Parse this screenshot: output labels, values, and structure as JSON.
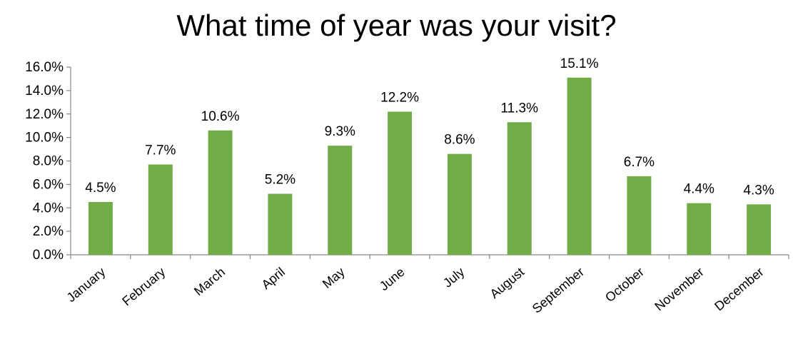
{
  "chart_data": {
    "type": "bar",
    "title": "What time of year was your visit?",
    "categories": [
      "January",
      "February",
      "March",
      "April",
      "May",
      "June",
      "July",
      "August",
      "September",
      "October",
      "November",
      "December"
    ],
    "values": [
      4.5,
      7.7,
      10.6,
      5.2,
      9.3,
      12.2,
      8.6,
      11.3,
      15.1,
      6.7,
      4.4,
      4.3
    ],
    "data_labels": [
      "4.5%",
      "7.7%",
      "10.6%",
      "5.2%",
      "9.3%",
      "12.2%",
      "8.6%",
      "11.3%",
      "15.1%",
      "6.7%",
      "4.4%",
      "4.3%"
    ],
    "yticks": [
      0,
      2,
      4,
      6,
      8,
      10,
      12,
      14,
      16
    ],
    "ytick_labels": [
      "0.0%",
      "2.0%",
      "4.0%",
      "6.0%",
      "8.0%",
      "10.0%",
      "12.0%",
      "14.0%",
      "16.0%"
    ],
    "ylim": [
      0,
      16
    ],
    "xlabel": "",
    "ylabel": "",
    "grid": false,
    "legend": "none",
    "bar_color": "#70AD47"
  }
}
